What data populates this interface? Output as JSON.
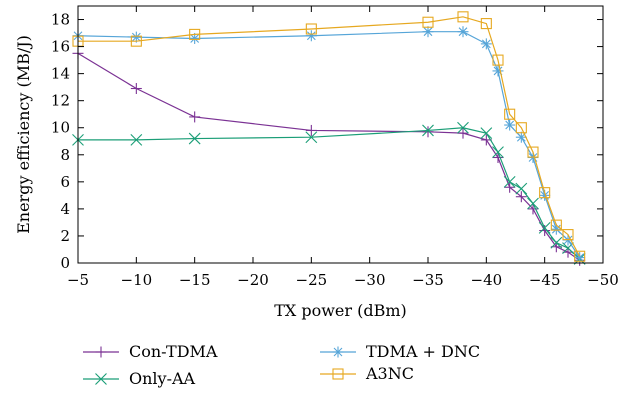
{
  "chart_data": {
    "type": "line",
    "xlabel": "TX power (dBm)",
    "ylabel": "Energy efficiency (MB/J)",
    "xlim": [
      -5,
      -50
    ],
    "ylim": [
      0,
      19
    ],
    "xticks": [
      -5,
      -10,
      -15,
      -20,
      -25,
      -30,
      -35,
      -40,
      -45,
      -50
    ],
    "yticks": [
      0,
      2,
      4,
      6,
      8,
      10,
      12,
      14,
      16,
      18
    ],
    "x_tick_labels": [
      "−5",
      "−10",
      "−15",
      "−20",
      "−25",
      "−30",
      "−35",
      "−40",
      "−45",
      "−50"
    ],
    "y_tick_labels": [
      "0",
      "2",
      "4",
      "6",
      "8",
      "10",
      "12",
      "14",
      "16",
      "18"
    ],
    "grid": false,
    "legend_position": "below",
    "x": [
      -5,
      -10,
      -15,
      -25,
      -35,
      -38,
      -40,
      -41,
      -42,
      -43,
      -44,
      -45,
      -46,
      -47,
      -48
    ],
    "series": [
      {
        "name": "Con-TDMA",
        "color": "#7b3294",
        "marker": "plus",
        "values": [
          15.5,
          12.9,
          10.8,
          9.8,
          9.7,
          9.6,
          9.1,
          7.8,
          5.6,
          4.9,
          4.0,
          2.4,
          1.2,
          0.8,
          0.2
        ]
      },
      {
        "name": "Only-AA",
        "color": "#1b9e77",
        "marker": "x",
        "values": [
          9.1,
          9.1,
          9.2,
          9.3,
          9.8,
          10.0,
          9.6,
          8.2,
          6.0,
          5.5,
          4.4,
          2.6,
          1.5,
          1.1,
          0.3
        ]
      },
      {
        "name": "TDMA + DNC",
        "color": "#56a5d8",
        "marker": "star",
        "values": [
          16.8,
          16.7,
          16.6,
          16.8,
          17.1,
          17.1,
          16.2,
          14.2,
          10.2,
          9.3,
          7.8,
          5.0,
          2.5,
          1.7,
          0.4
        ]
      },
      {
        "name": "A3NC",
        "color": "#e6a820",
        "marker": "square",
        "values": [
          16.4,
          16.4,
          16.9,
          17.3,
          17.8,
          18.2,
          17.7,
          15.0,
          11.0,
          10.0,
          8.2,
          5.2,
          2.8,
          2.1,
          0.5
        ]
      }
    ]
  }
}
